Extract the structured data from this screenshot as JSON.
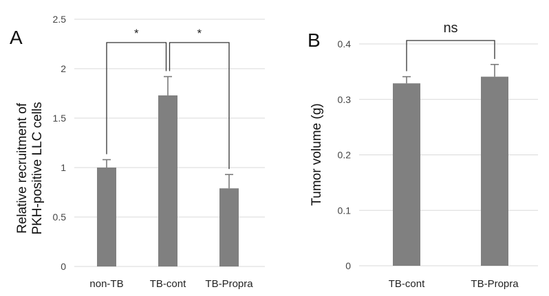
{
  "chart_data": [
    {
      "type": "bar",
      "panel_label": "A",
      "categories": [
        "non-TB",
        "TB-cont",
        "TB-Propra"
      ],
      "values": [
        1.0,
        1.73,
        0.79
      ],
      "errors": [
        0.08,
        0.19,
        0.14
      ],
      "ylabel_line1": "Relative recruitment of",
      "ylabel_line2": "PKH-positive LLC cells",
      "xlabel": "",
      "ylim": [
        0,
        2.5
      ],
      "yticks": [
        "0",
        "0.5",
        "1",
        "1.5",
        "2",
        "2.5"
      ],
      "grid": true,
      "bar_color": "#808080",
      "annotations": [
        {
          "from": 0,
          "to": 1,
          "label": "*"
        },
        {
          "from": 1,
          "to": 2,
          "label": "*"
        }
      ]
    },
    {
      "type": "bar",
      "panel_label": "B",
      "categories": [
        "TB-cont",
        "TB-Propra"
      ],
      "values": [
        0.329,
        0.341
      ],
      "errors": [
        0.012,
        0.022
      ],
      "ylabel_line1": "Tumor volume (g)",
      "xlabel": "",
      "ylim": [
        0,
        0.4
      ],
      "yticks": [
        "0",
        "0.1",
        "0.2",
        "0.3",
        "0.4"
      ],
      "grid": true,
      "bar_color": "#808080",
      "annotations": [
        {
          "from": 0,
          "to": 1,
          "label": "ns"
        }
      ]
    }
  ]
}
